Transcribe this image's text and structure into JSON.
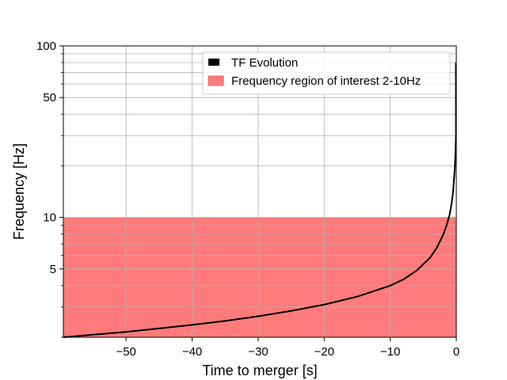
{
  "chart_data": {
    "type": "line",
    "title": "",
    "xlabel": "Time to merger [s]",
    "ylabel": "Frequency [Hz]",
    "xlim": [
      -59.5,
      0
    ],
    "ylim": [
      2,
      100
    ],
    "yscale": "log",
    "xticks": [
      -50,
      -40,
      -30,
      -20,
      -10,
      0
    ],
    "xtick_labels": [
      "−50",
      "−40",
      "−30",
      "−20",
      "−10",
      "0"
    ],
    "yticks": [
      5,
      10,
      50,
      100
    ],
    "ytick_labels": [
      "5",
      "10",
      "50",
      "100"
    ],
    "grid": true,
    "legend_position": "top-right",
    "series": [
      {
        "name": "TF Evolution",
        "color": "#000000",
        "x": [
          -59.5,
          -55,
          -50,
          -45,
          -40,
          -35,
          -30,
          -25,
          -20,
          -15,
          -10,
          -8,
          -6,
          -4,
          -3,
          -2,
          -1.5,
          -1,
          -0.7,
          -0.5,
          -0.3,
          -0.2,
          -0.1,
          -0.05
        ],
        "y": [
          2.0,
          2.07,
          2.15,
          2.25,
          2.36,
          2.49,
          2.65,
          2.85,
          3.1,
          3.45,
          4.0,
          4.35,
          4.9,
          5.8,
          6.6,
          7.9,
          8.9,
          10.4,
          12.1,
          14.0,
          17.5,
          20.3,
          25.6,
          30.0
        ]
      }
    ],
    "shaded_regions": [
      {
        "name": "Frequency region of interest 2-10Hz",
        "y_range": [
          2,
          10
        ],
        "color": "#ff7b7b"
      }
    ]
  }
}
